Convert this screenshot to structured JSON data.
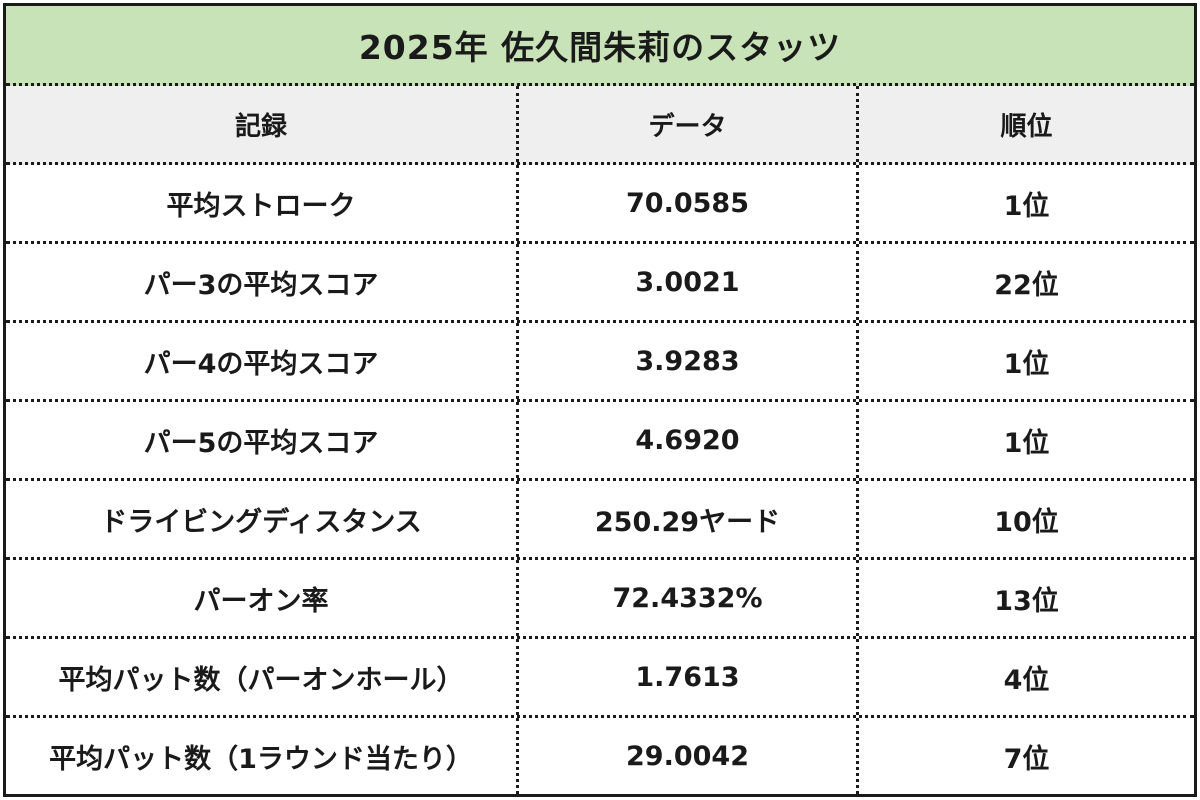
{
  "title": "2025年 佐久間朱莉のスタッツ",
  "headers": {
    "record": "記録",
    "data": "データ",
    "rank": "順位"
  },
  "rows": [
    {
      "record": "平均ストローク",
      "data": "70.0585",
      "rank": "1位"
    },
    {
      "record": "パー3の平均スコア",
      "data": "3.0021",
      "rank": "22位"
    },
    {
      "record": "パー4の平均スコア",
      "data": "3.9283",
      "rank": "1位"
    },
    {
      "record": "パー5の平均スコア",
      "data": "4.6920",
      "rank": "1位"
    },
    {
      "record": "ドライビングディスタンス",
      "data": "250.29ヤード",
      "rank": "10位"
    },
    {
      "record": "パーオン率",
      "data": "72.4332%",
      "rank": "13位"
    },
    {
      "record": "平均パット数（パーオンホール）",
      "data": "1.7613",
      "rank": "4位"
    },
    {
      "record": "平均パット数（1ラウンド当たり）",
      "data": "29.0042",
      "rank": "7位"
    }
  ],
  "colors": {
    "title_background": "#c9e3b8",
    "header_background": "#efefef",
    "border": "#1a1a1a",
    "text": "#1a1a1a"
  }
}
